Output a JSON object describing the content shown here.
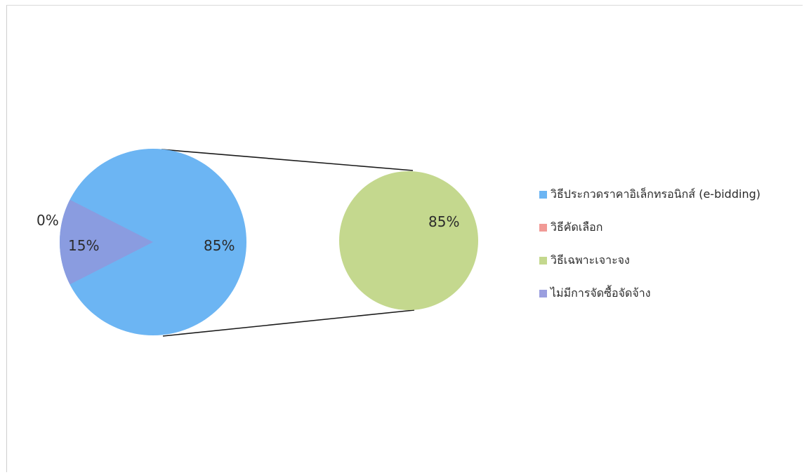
{
  "chart_data": {
    "type": "pie",
    "subtype": "pie-of-pie",
    "title": "",
    "categories": [
      "วิธีประกวดราคาอิเล็กทรอนิกส์ (e-bidding)",
      "วิธีคัดเลือก",
      "วิธีเฉพาะเจาะจง",
      "ไม่มีการจัดซื้อจัดจ้าง"
    ],
    "colors": [
      "#6cb5f3",
      "#f19a96",
      "#c4d88e",
      "#9b9fdf"
    ],
    "main_pie": {
      "slices": [
        {
          "label": "85%",
          "value": 85,
          "color": "#6cb5f3"
        },
        {
          "label": "15%",
          "value": 15,
          "color": "#8a9ce0"
        },
        {
          "label": "0%",
          "value": 0,
          "color": "#f19a96"
        }
      ]
    },
    "secondary_pie": {
      "slices": [
        {
          "label": "85%",
          "value": 85,
          "color": "#c4d88e"
        }
      ]
    },
    "legend": {
      "position": "right",
      "items": [
        {
          "label": "วิธีประกวดราคาอิเล็กทรอนิกส์ (e-bidding)",
          "color": "#6cb5f3"
        },
        {
          "label": "วิธีคัดเลือก",
          "color": "#f19a96"
        },
        {
          "label": "วิธีเฉพาะเจาะจง",
          "color": "#c4d88e"
        },
        {
          "label": "ไม่มีการจัดซื้อจัดจ้าง",
          "color": "#9b9fdf"
        }
      ]
    }
  }
}
